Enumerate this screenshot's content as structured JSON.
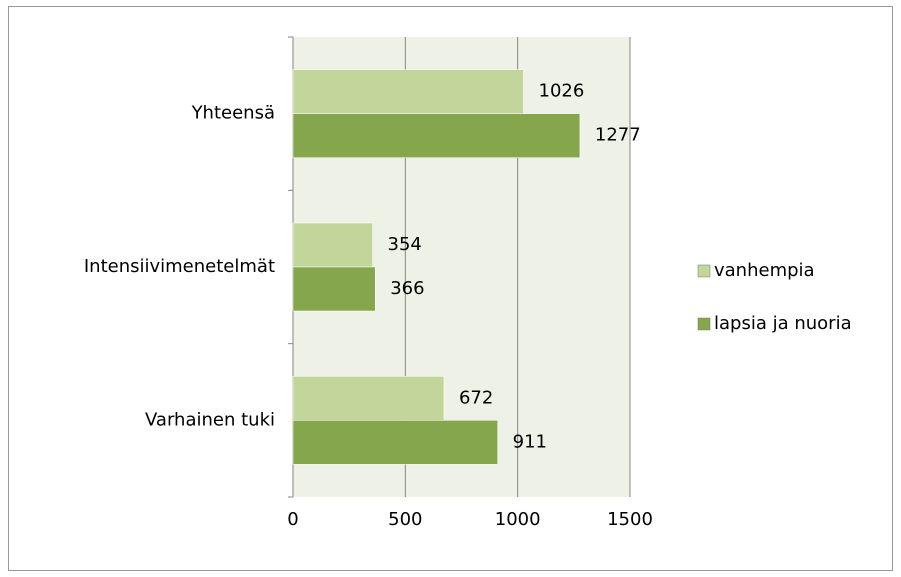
{
  "chart_data": {
    "type": "bar",
    "orientation": "horizontal",
    "categories": [
      "Yhteensä",
      "Intensiivimenetelmät",
      "Varhainen tuki"
    ],
    "series": [
      {
        "name": "vanhempia",
        "color": "#c2d69b",
        "values": [
          1026,
          354,
          672
        ]
      },
      {
        "name": "lapsia ja nuoria",
        "color": "#86a64d",
        "values": [
          1277,
          366,
          911
        ]
      }
    ],
    "xlim": [
      0,
      1500
    ],
    "xticks": [
      0,
      500,
      1000,
      1500
    ],
    "grid": true,
    "legend": "right"
  }
}
